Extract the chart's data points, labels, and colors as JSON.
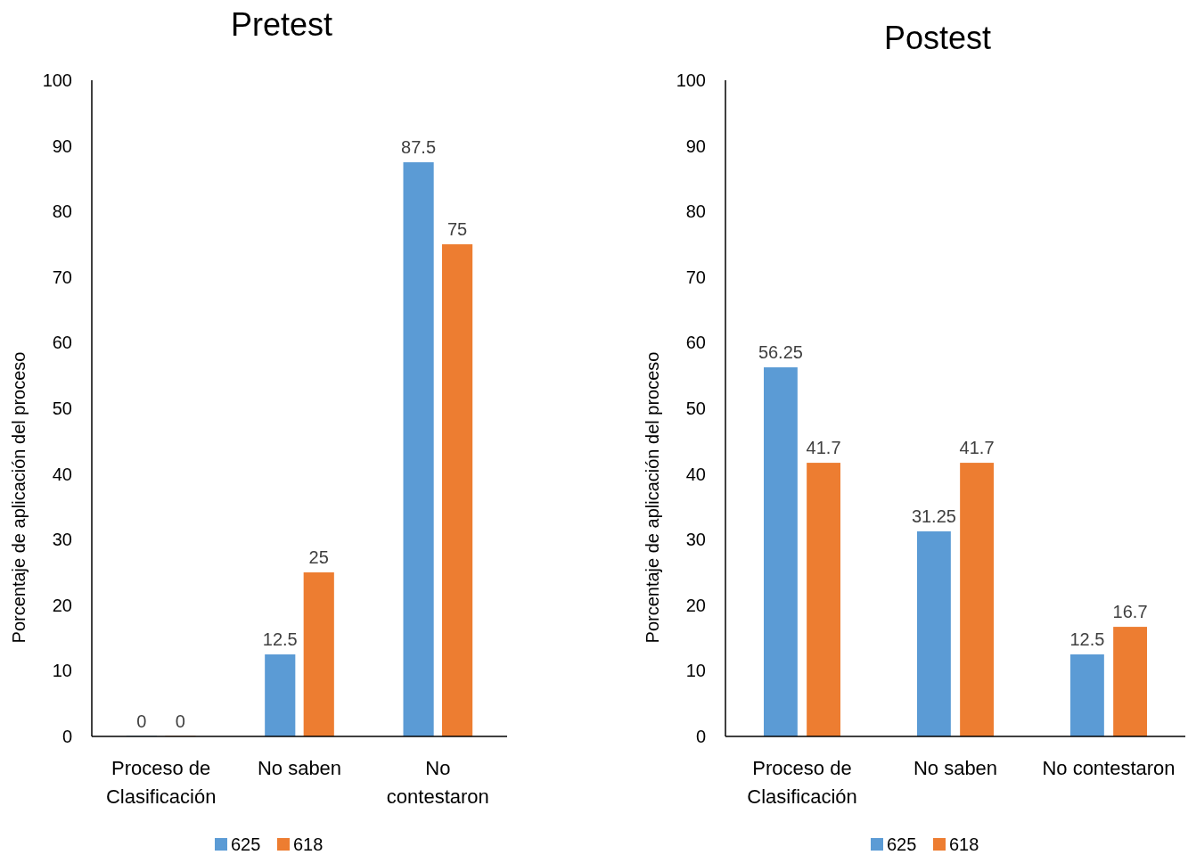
{
  "chart_data": [
    {
      "type": "bar",
      "title": "Pretest",
      "ylabel": "Porcentaje de aplicación del proceso",
      "categories": [
        "Proceso de Clasificación",
        "No saben",
        "No contestaron"
      ],
      "series": [
        {
          "name": "625",
          "color": "#5b9bd5",
          "values": [
            0,
            12.5,
            87.5
          ]
        },
        {
          "name": "618",
          "color": "#ed7d31",
          "values": [
            0,
            25,
            75
          ]
        }
      ],
      "ylim": [
        0,
        100
      ],
      "yticks": [
        0,
        10,
        20,
        30,
        40,
        50,
        60,
        70,
        80,
        90,
        100
      ],
      "grid": false,
      "legend": "bottom",
      "data_labels": true
    },
    {
      "type": "bar",
      "title": "Postest",
      "ylabel": "Porcentaje de aplicación del proceso",
      "categories": [
        "Proceso de Clasificación",
        "No saben",
        "No contestaron"
      ],
      "series": [
        {
          "name": "625",
          "color": "#5b9bd5",
          "values": [
            56.25,
            31.25,
            12.5
          ]
        },
        {
          "name": "618",
          "color": "#ed7d31",
          "values": [
            41.7,
            41.7,
            16.7
          ]
        }
      ],
      "ylim": [
        0,
        100
      ],
      "yticks": [
        0,
        10,
        20,
        30,
        40,
        50,
        60,
        70,
        80,
        90,
        100
      ],
      "grid": false,
      "legend": "bottom",
      "data_labels": true
    }
  ]
}
